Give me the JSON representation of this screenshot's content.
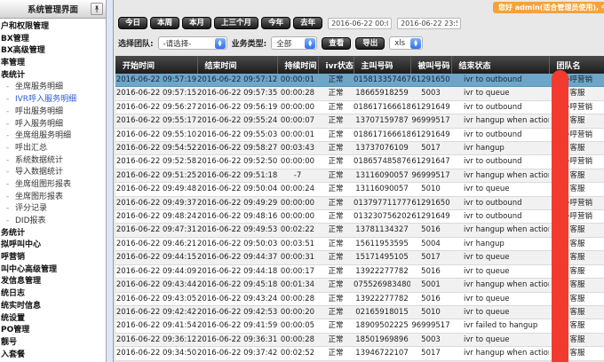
{
  "sidebar": {
    "title": "系统管理界面",
    "items": [
      {
        "label": "户和权限管理",
        "level": "top",
        "active": false
      },
      {
        "label": "BX管理",
        "level": "top",
        "active": false
      },
      {
        "label": "BX高级管理",
        "level": "top",
        "active": false
      },
      {
        "label": "率管理",
        "level": "top",
        "active": false
      },
      {
        "label": "表统计",
        "level": "top",
        "active": false
      },
      {
        "label": "坐席服务明细",
        "level": "sub",
        "active": false
      },
      {
        "label": "IVR呼入服务明细",
        "level": "sub",
        "active": true
      },
      {
        "label": "呼出服务明细",
        "level": "sub",
        "active": false
      },
      {
        "label": "呼入服务明细",
        "level": "sub",
        "active": false
      },
      {
        "label": "坐席组服务明细",
        "level": "sub",
        "active": false
      },
      {
        "label": "呼出汇总",
        "level": "sub",
        "active": false
      },
      {
        "label": "系统数据统计",
        "level": "sub",
        "active": false
      },
      {
        "label": "导入数据统计",
        "level": "sub",
        "active": false
      },
      {
        "label": "坐席组图形报表",
        "level": "sub",
        "active": false
      },
      {
        "label": "坐席图形报表",
        "level": "sub",
        "active": false
      },
      {
        "label": "评分记录",
        "level": "sub",
        "active": false
      },
      {
        "label": "DID报表",
        "level": "sub",
        "active": false
      },
      {
        "label": "务统计",
        "level": "top",
        "active": false
      },
      {
        "label": "拟呼叫中心",
        "level": "top",
        "active": false
      },
      {
        "label": "呼营销",
        "level": "top",
        "active": false
      },
      {
        "label": "叫中心高级管理",
        "level": "top",
        "active": false
      },
      {
        "label": "发信息管理",
        "level": "top",
        "active": false
      },
      {
        "label": "统日志",
        "level": "top",
        "active": false
      },
      {
        "label": "统实时信息",
        "level": "top",
        "active": false
      },
      {
        "label": "统设置",
        "level": "top",
        "active": false
      },
      {
        "label": "PO管理",
        "level": "top",
        "active": false
      },
      {
        "label": "靓号",
        "level": "top",
        "active": false
      },
      {
        "label": "入套餐",
        "level": "top",
        "active": false
      }
    ]
  },
  "header_badge": "您好 admin(适合管理员使用), 今天 2016",
  "toolbar": {
    "quick_buttons": [
      "今日",
      "本周",
      "本月",
      "上三个月",
      "今年",
      "去年"
    ],
    "date_from": "2016-06-22 00:00",
    "date_to": "2016-06-22 23:59",
    "team_label": "选择团队:",
    "team_value": "-请选择-",
    "type_label": "业务类型:",
    "type_value": "全部",
    "view_button": "查看",
    "export_button": "导出",
    "export_format": "xls"
  },
  "table": {
    "columns": [
      "开始时间",
      "结束时间",
      "持续时间",
      "ivr状态",
      "主叫号码",
      "被叫号码",
      "结束状态",
      "团队名"
    ],
    "selected_row_index": 0,
    "rows": [
      [
        "2016-06-22 09:57:19",
        "2016-06-22 09:57:12",
        "00:00:01",
        "正常",
        "015813357467",
        "61291650",
        "ivr to outbound",
        "外呼营销"
      ],
      [
        "2016-06-22 09:57:15",
        "2016-06-22 09:57:35",
        "00:00:28",
        "正常",
        "18665918259",
        "5003",
        "ivr to queue",
        "客服"
      ],
      [
        "2016-06-22 09:56:27",
        "2016-06-22 09:56:19",
        "00:00:00",
        "正常",
        "018617166618",
        "61291649",
        "ivr to outbound",
        "外呼营销"
      ],
      [
        "2016-06-22 09:55:17",
        "2016-06-22 09:55:24",
        "00:00:07",
        "正常",
        "13707159787",
        "96999517",
        "ivr hangup when action",
        "客服"
      ],
      [
        "2016-06-22 09:55:10",
        "2016-06-22 09:55:03",
        "00:00:01",
        "正常",
        "018617166618",
        "61291649",
        "ivr to outbound",
        "外呼营销"
      ],
      [
        "2016-06-22 09:54:52",
        "2016-06-22 09:58:27",
        "00:03:43",
        "正常",
        "13737076109",
        "5017",
        "ivr hangup",
        "客服"
      ],
      [
        "2016-06-22 09:52:58",
        "2016-06-22 09:52:50",
        "00:00:00",
        "正常",
        "018657485876",
        "61291647",
        "ivr to outbound",
        "外呼营销"
      ],
      [
        "2016-06-22 09:51:25",
        "2016-06-22 09:51:18",
        "-7",
        "正常",
        "13116090057",
        "96999517",
        "ivr hangup when action",
        "客服"
      ],
      [
        "2016-06-22 09:49:48",
        "2016-06-22 09:50:04",
        "00:00:24",
        "正常",
        "13116090057",
        "5010",
        "ivr to queue",
        "客服"
      ],
      [
        "2016-06-22 09:49:37",
        "2016-06-22 09:49:29",
        "00:00:00",
        "正常",
        "013797711777",
        "61291650",
        "ivr to outbound",
        "外呼营销"
      ],
      [
        "2016-06-22 09:48:24",
        "2016-06-22 09:48:16",
        "00:00:00",
        "正常",
        "013230756202",
        "61291649",
        "ivr to outbound",
        "外呼营销"
      ],
      [
        "2016-06-22 09:47:31",
        "2016-06-22 09:49:53",
        "00:02:22",
        "正常",
        "13781134327",
        "5016",
        "ivr hangup when action",
        "客服"
      ],
      [
        "2016-06-22 09:46:21",
        "2016-06-22 09:50:03",
        "00:03:51",
        "正常",
        "15611953595",
        "5004",
        "ivr hangup",
        "客服"
      ],
      [
        "2016-06-22 09:44:15",
        "2016-06-22 09:44:37",
        "00:00:31",
        "正常",
        "15171495105",
        "5017",
        "ivr to queue",
        "客服"
      ],
      [
        "2016-06-22 09:44:09",
        "2016-06-22 09:44:18",
        "00:00:17",
        "正常",
        "13922277782",
        "5016",
        "ivr to queue",
        "客服"
      ],
      [
        "2016-06-22 09:43:44",
        "2016-06-22 09:45:18",
        "00:01:34",
        "正常",
        "075526983480",
        "5001",
        "ivr hangup when action",
        "客服"
      ],
      [
        "2016-06-22 09:43:05",
        "2016-06-22 09:43:24",
        "00:00:28",
        "正常",
        "13922277782",
        "5016",
        "ivr to queue",
        "客服"
      ],
      [
        "2016-06-22 09:42:42",
        "2016-06-22 09:42:53",
        "00:00:20",
        "正常",
        "02165918015",
        "5010",
        "ivr to queue",
        "客服"
      ],
      [
        "2016-06-22 09:41:54",
        "2016-06-22 09:41:59",
        "00:00:05",
        "正常",
        "18909502225",
        "96999517",
        "ivr failed to hangup",
        "客服"
      ],
      [
        "2016-06-22 09:36:12",
        "2016-06-22 09:36:31",
        "00:00:28",
        "正常",
        "18501969896",
        "5003",
        "ivr to queue",
        "客服"
      ],
      [
        "2016-06-22 09:34:50",
        "2016-06-22 09:37:42",
        "00:02:52",
        "正常",
        "13946722107",
        "5017",
        "ivr hangup when action",
        "客服"
      ]
    ]
  },
  "colors": {
    "badge_orange": "#F6A13B",
    "selected_row_blue": "#6EA6C9",
    "annotation_red": "#F23B2E",
    "active_menu_blue": "#2B5CD8",
    "table_header_dark": "#1C1C1C"
  }
}
